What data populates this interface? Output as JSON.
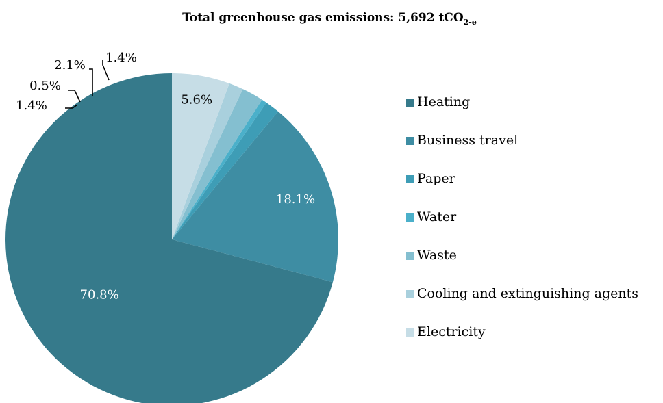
{
  "chart_data": {
    "type": "pie",
    "title": {
      "main": "Total greenhouse gas emissions: 5,692 tCO",
      "subscript": "2-e"
    },
    "slices": [
      {
        "name": "Heating",
        "value": 70.8,
        "label": "70.8%",
        "color": "#367A8B"
      },
      {
        "name": "Business travel",
        "value": 18.1,
        "label": "18.1%",
        "color": "#3E8DA3"
      },
      {
        "name": "Paper",
        "value": 1.4,
        "label": "1.4%",
        "color": "#3E9DB6"
      },
      {
        "name": "Water",
        "value": 0.5,
        "label": "0.5%",
        "color": "#4BB0CA"
      },
      {
        "name": "Waste",
        "value": 2.1,
        "label": "2.1%",
        "color": "#84BFD0"
      },
      {
        "name": "Cooling and extinguishing agents",
        "value": 1.4,
        "label": "1.4%",
        "color": "#A9D0DD"
      },
      {
        "name": "Electricity",
        "value": 5.6,
        "label": "5.6%",
        "color": "#C6DDE6"
      }
    ],
    "legend_position": "right"
  }
}
